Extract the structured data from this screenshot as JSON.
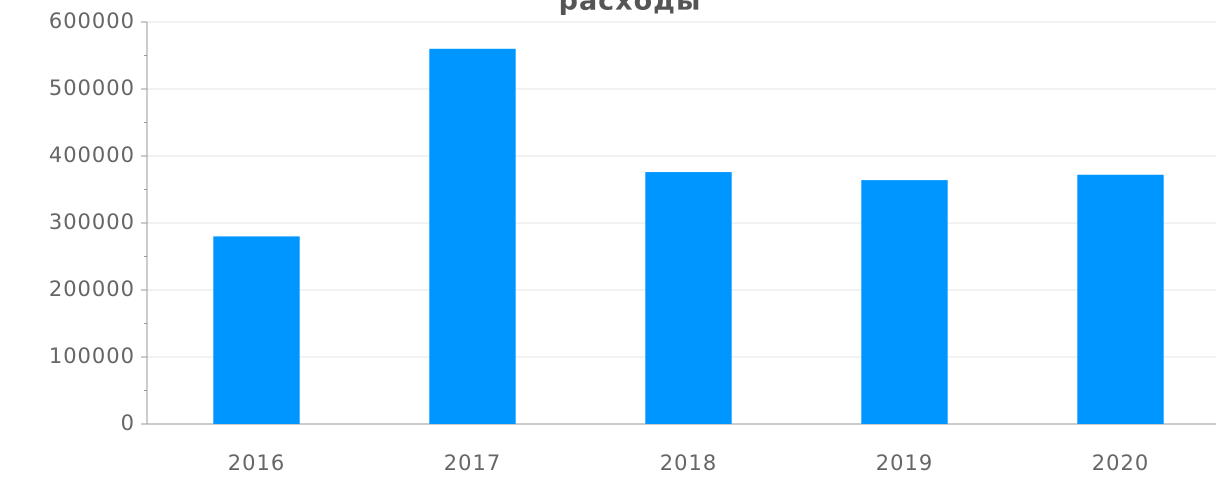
{
  "chart_data": {
    "type": "bar",
    "title": "расходы",
    "categories": [
      "2016",
      "2017",
      "2018",
      "2019",
      "2020"
    ],
    "values": [
      280000,
      560000,
      376000,
      364000,
      372000
    ],
    "color": "#0096ff",
    "ylim": [
      0,
      600000
    ],
    "yticks": [
      0,
      100000,
      200000,
      300000,
      400000,
      500000,
      600000
    ],
    "minor_yticks": [
      50000,
      150000,
      250000,
      350000,
      450000,
      550000
    ],
    "grid": true
  }
}
